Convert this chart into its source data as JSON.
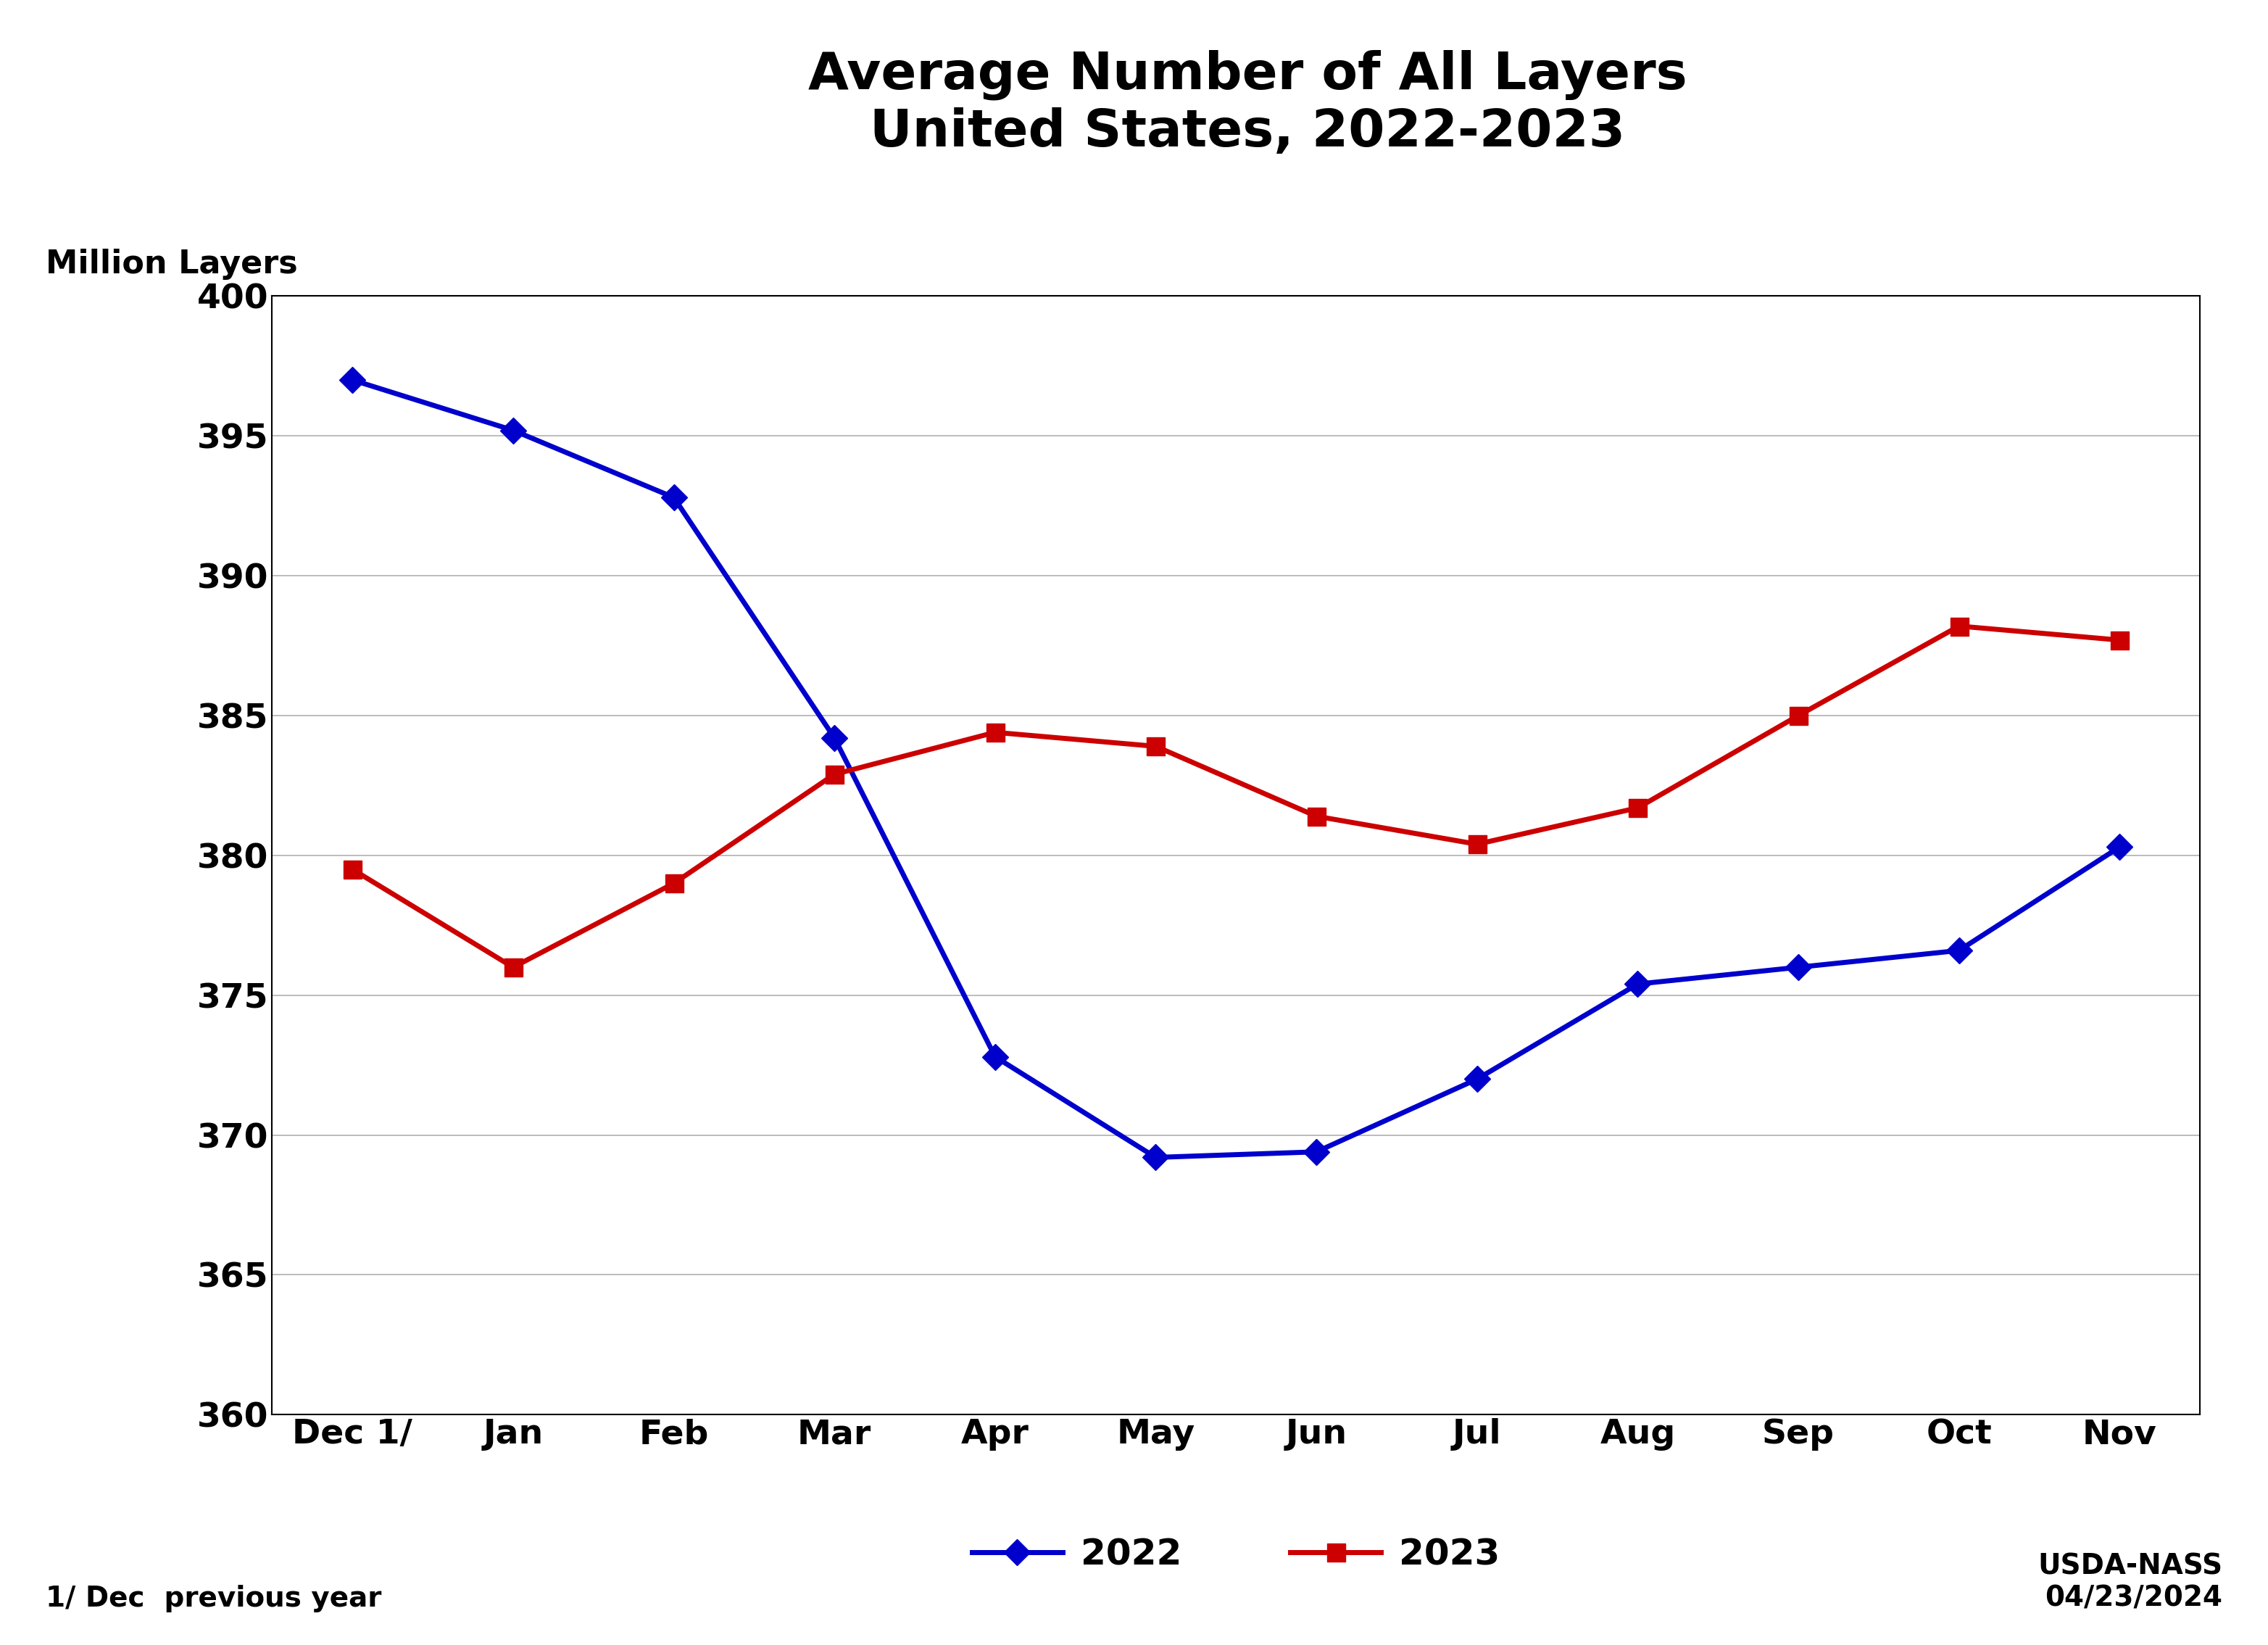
{
  "title_line1": "Average Number of All Layers",
  "title_line2": "United States, 2022-2023",
  "ylabel": "Million Layers",
  "xlabel_note": "1/ Dec  previous year",
  "source_note": "USDA-NASS\n04/23/2024",
  "x_labels": [
    "Dec 1/",
    "Jan",
    "Feb",
    "Mar",
    "Apr",
    "May",
    "Jun",
    "Jul",
    "Aug",
    "Sep",
    "Oct",
    "Nov"
  ],
  "y2022": [
    397.0,
    395.2,
    392.8,
    384.2,
    372.8,
    369.2,
    369.4,
    372.0,
    375.4,
    376.0,
    376.6,
    380.3
  ],
  "y2023": [
    379.5,
    376.0,
    379.0,
    382.9,
    384.4,
    383.9,
    381.4,
    380.4,
    381.7,
    385.0,
    388.2,
    387.7
  ],
  "color_2022": "#0000CC",
  "color_2023": "#CC0000",
  "ylim_min": 360,
  "ylim_max": 400,
  "yticks": [
    360,
    365,
    370,
    375,
    380,
    385,
    390,
    395,
    400
  ],
  "background_color": "#ffffff",
  "grid_color": "#b0b0b0",
  "title_fontsize": 52,
  "ylabel_fontsize": 32,
  "tick_fontsize": 34,
  "legend_fontsize": 36,
  "note_fontsize": 28,
  "line_width": 5.0,
  "marker_size": 18
}
